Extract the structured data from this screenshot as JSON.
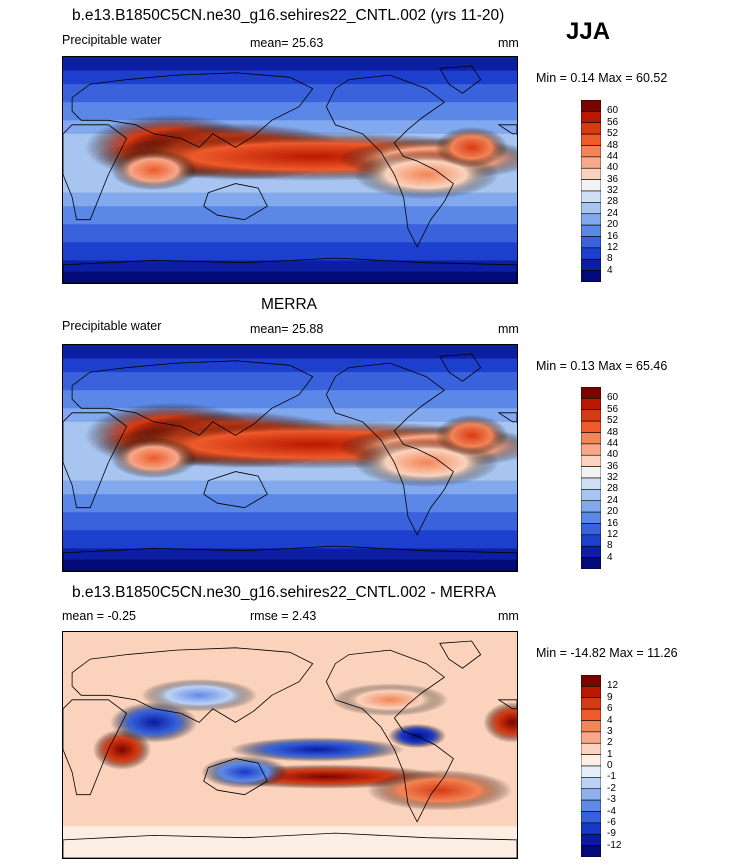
{
  "season": "JJA",
  "panels": [
    {
      "title": "b.e13.B1850C5CN.ne30_g16.sehires22_CNTL.002 (yrs 11-20)",
      "variable": "Precipitable water",
      "mean_text": "mean=  25.63",
      "units": "mm",
      "minmax_text": "Min =   0.14 Max =  60.52",
      "colorbar_labels": [
        "60",
        "56",
        "52",
        "48",
        "44",
        "40",
        "36",
        "32",
        "28",
        "24",
        "20",
        "16",
        "12",
        "8",
        "4"
      ],
      "colors": [
        "#7a0400",
        "#b81800",
        "#d83a12",
        "#ee5a2a",
        "#f28456",
        "#f6a888",
        "#fbd3bd",
        "#f4f3f4",
        "#cfdff6",
        "#a8c5f2",
        "#82a8ee",
        "#5b87e6",
        "#3a62dd",
        "#1d3fcd",
        "#0c1fa3",
        "#030a78"
      ]
    },
    {
      "title": "MERRA",
      "variable": "Precipitable water",
      "mean_text": "mean=  25.88",
      "units": "mm",
      "minmax_text": "Min =   0.13 Max =  65.46",
      "colorbar_labels": [
        "60",
        "56",
        "52",
        "48",
        "44",
        "40",
        "36",
        "32",
        "28",
        "24",
        "20",
        "16",
        "12",
        "8",
        "4"
      ],
      "colors": [
        "#7a0400",
        "#b81800",
        "#d83a12",
        "#ee5a2a",
        "#f28456",
        "#f6a888",
        "#fbd3bd",
        "#f4f3f4",
        "#cfdff6",
        "#a8c5f2",
        "#82a8ee",
        "#5b87e6",
        "#3a62dd",
        "#1d3fcd",
        "#0c1fa3",
        "#030a78"
      ]
    },
    {
      "title": "b.e13.B1850C5CN.ne30_g16.sehires22_CNTL.002 - MERRA",
      "variable": "mean =  -0.25",
      "mean_text": "rmse =   2.43",
      "units": "mm",
      "minmax_text": "Min = -14.82 Max =  11.26",
      "colorbar_labels": [
        "12",
        "9",
        "6",
        "4",
        "3",
        "2",
        "1",
        "0",
        "-1",
        "-2",
        "-3",
        "-4",
        "-6",
        "-9",
        "-12"
      ],
      "colors": [
        "#7a0400",
        "#b81800",
        "#d83a12",
        "#ee5a2a",
        "#f28456",
        "#f6a888",
        "#fbd3bd",
        "#fdeee4",
        "#e6eefb",
        "#bcd2f5",
        "#8fb1ef",
        "#5f8be6",
        "#3562dc",
        "#1838c9",
        "#0b1aa0",
        "#030a78"
      ]
    }
  ],
  "chart_data": [
    {
      "type": "heatmap",
      "title": "b.e13.B1850C5CN.ne30_g16.sehires22_CNTL.002 (yrs 11-20)",
      "variable": "Precipitable water",
      "units": "mm",
      "mean": 25.63,
      "min": 0.14,
      "max": 60.52,
      "contour_levels": [
        4,
        8,
        12,
        16,
        20,
        24,
        28,
        32,
        36,
        40,
        44,
        48,
        52,
        56,
        60
      ]
    },
    {
      "type": "heatmap",
      "title": "MERRA",
      "variable": "Precipitable water",
      "units": "mm",
      "mean": 25.88,
      "min": 0.13,
      "max": 65.46,
      "contour_levels": [
        4,
        8,
        12,
        16,
        20,
        24,
        28,
        32,
        36,
        40,
        44,
        48,
        52,
        56,
        60
      ]
    },
    {
      "type": "heatmap",
      "title": "b.e13.B1850C5CN.ne30_g16.sehires22_CNTL.002 - MERRA",
      "units": "mm",
      "mean": -0.25,
      "rmse": 2.43,
      "min": -14.82,
      "max": 11.26,
      "contour_levels": [
        -12,
        -9,
        -6,
        -4,
        -3,
        -2,
        -1,
        0,
        1,
        2,
        3,
        4,
        6,
        9,
        12
      ]
    }
  ]
}
